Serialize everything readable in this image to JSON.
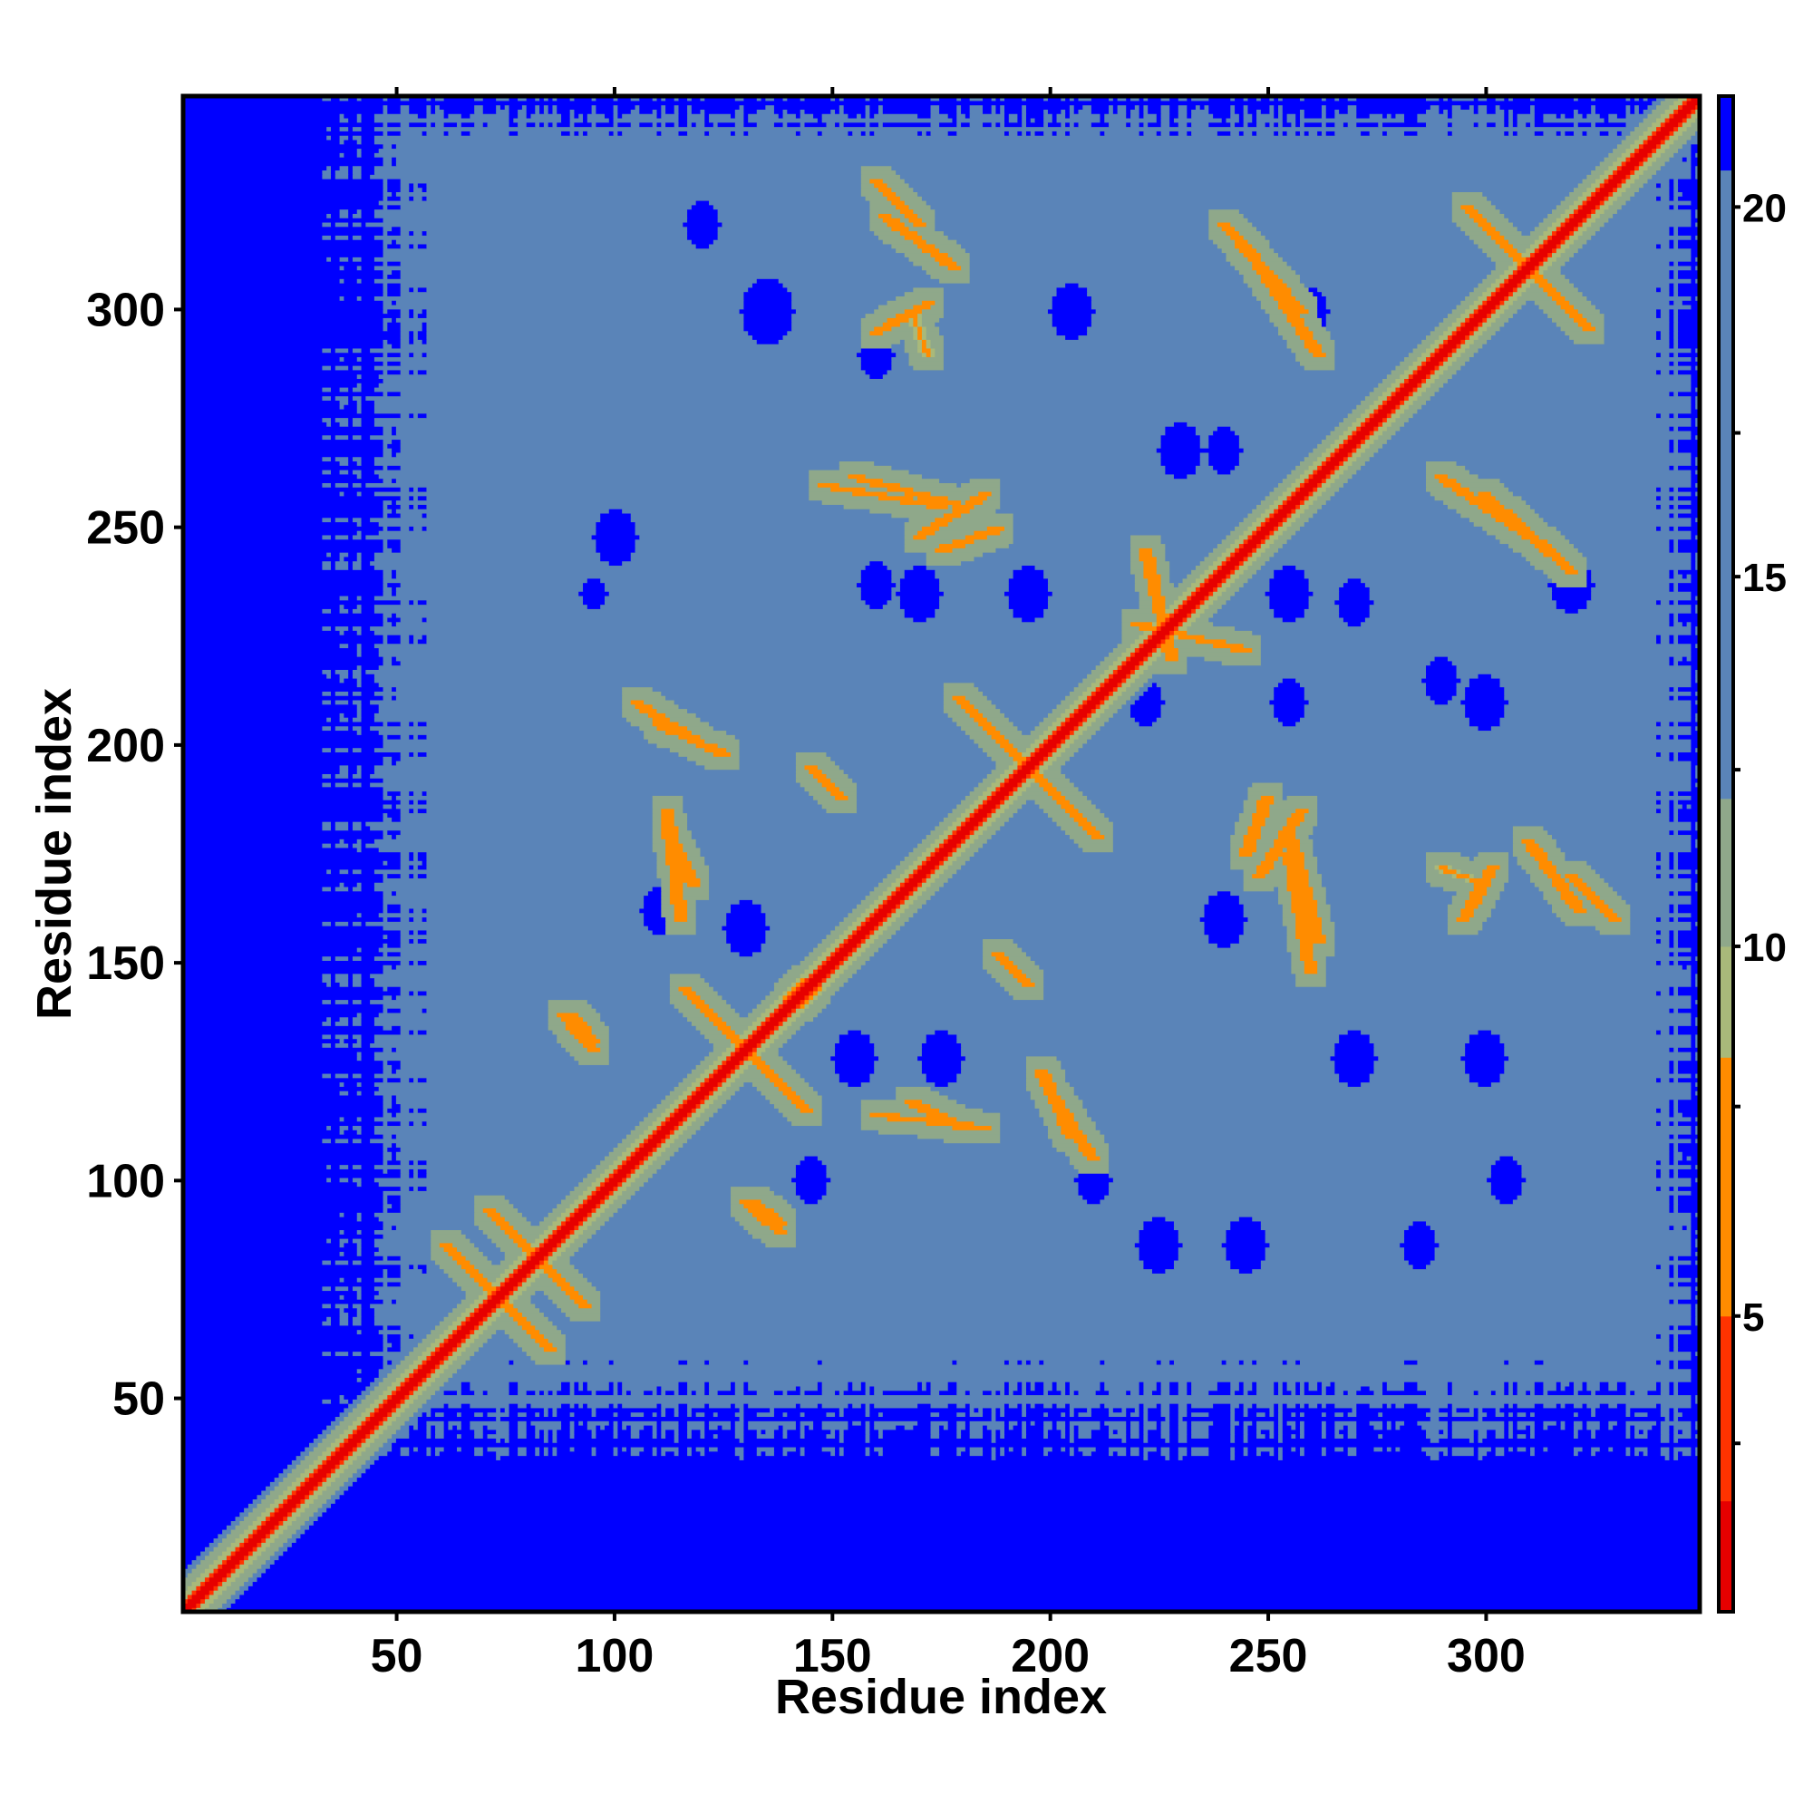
{
  "chart_data": {
    "type": "heatmap",
    "title": "",
    "xlabel": "Residue index",
    "ylabel": "Residue index",
    "xlim": [
      1,
      349
    ],
    "ylim": [
      1,
      349
    ],
    "xticks": [
      50,
      100,
      150,
      200,
      250,
      300
    ],
    "yticks": [
      50,
      100,
      150,
      200,
      250,
      300
    ],
    "xtick_labels": [
      "50",
      "100",
      "150",
      "200",
      "250",
      "300"
    ],
    "ytick_labels": [
      "50",
      "100",
      "150",
      "200",
      "250",
      "300"
    ],
    "grid": false,
    "colorbar": {
      "range": [
        1,
        21.5
      ],
      "ticks": [
        5,
        10,
        15,
        20
      ],
      "tick_labels": [
        "5",
        "10",
        "15",
        "20"
      ],
      "colors": [
        {
          "from": 1,
          "to": 2.5,
          "color": "#e60000"
        },
        {
          "from": 2.5,
          "to": 5,
          "color": "#ff3300"
        },
        {
          "from": 5,
          "to": 8.5,
          "color": "#ff8c00"
        },
        {
          "from": 8.5,
          "to": 10,
          "color": "#a9b97a"
        },
        {
          "from": 10,
          "to": 12,
          "color": "#8fa88a"
        },
        {
          "from": 12,
          "to": 20.5,
          "color": "#5a84b8"
        },
        {
          "from": 20.5,
          "to": 21.5,
          "color": "#0000ff"
        }
      ]
    },
    "background_value": 21,
    "diagonal_value": 1,
    "contact_region_value": 17,
    "plot_region": {
      "x": [
        45,
        345
      ],
      "y": [
        45,
        345
      ]
    },
    "features": [
      {
        "kind": "cross",
        "center": [
          73,
          73
        ],
        "half_length": 12,
        "value": 6
      },
      {
        "kind": "cross",
        "center": [
          82,
          82
        ],
        "half_length": 11,
        "value": 6
      },
      {
        "kind": "cross",
        "center": [
          130,
          130
        ],
        "half_length": 14,
        "value": 6
      },
      {
        "kind": "cross",
        "center": [
          195,
          195
        ],
        "half_length": 16,
        "value": 6
      },
      {
        "kind": "cross",
        "center": [
          310,
          310
        ],
        "half_length": 14,
        "value": 6
      },
      {
        "kind": "band",
        "from": [
          90,
          138
        ],
        "to": [
          95,
          132
        ],
        "value": 6
      },
      {
        "kind": "band",
        "from": [
          130,
          95
        ],
        "to": [
          138,
          88
        ],
        "value": 6
      },
      {
        "kind": "band",
        "from": [
          145,
          195
        ],
        "to": [
          152,
          188
        ],
        "value": 6
      },
      {
        "kind": "band",
        "from": [
          142,
          140
        ],
        "to": [
          148,
          147
        ],
        "value": 6
      },
      {
        "kind": "band",
        "from": [
          160,
          330
        ],
        "to": [
          170,
          320
        ],
        "value": 6
      },
      {
        "kind": "band",
        "from": [
          148,
          260
        ],
        "to": [
          175,
          255
        ],
        "value": 7
      },
      {
        "kind": "band",
        "from": [
          170,
          248
        ],
        "to": [
          185,
          258
        ],
        "value": 7
      },
      {
        "kind": "band",
        "from": [
          160,
          115
        ],
        "to": [
          185,
          112
        ],
        "value": 7
      },
      {
        "kind": "band",
        "from": [
          200,
          120
        ],
        "to": [
          210,
          105
        ],
        "value": 7
      },
      {
        "kind": "band",
        "from": [
          255,
          180
        ],
        "to": [
          262,
          155
        ],
        "value": 7
      },
      {
        "kind": "band",
        "from": [
          245,
          175
        ],
        "to": [
          250,
          188
        ],
        "value": 7
      },
      {
        "kind": "band",
        "from": [
          310,
          178
        ],
        "to": [
          322,
          162
        ],
        "value": 7
      },
      {
        "kind": "band",
        "from": [
          295,
          160
        ],
        "to": [
          302,
          172
        ],
        "value": 7
      },
      {
        "kind": "band",
        "from": [
          290,
          262
        ],
        "to": [
          315,
          245
        ],
        "value": 7
      },
      {
        "kind": "band",
        "from": [
          240,
          320
        ],
        "to": [
          258,
          300
        ],
        "value": 7
      },
      {
        "kind": "band",
        "from": [
          110,
          205
        ],
        "to": [
          125,
          198
        ],
        "value": 7
      },
      {
        "kind": "band",
        "from": [
          112,
          180
        ],
        "to": [
          118,
          168
        ],
        "value": 7
      },
      {
        "kind": "band",
        "from": [
          168,
          300
        ],
        "to": [
          172,
          290
        ],
        "value": 8
      },
      {
        "kind": "band",
        "from": [
          220,
          228
        ],
        "to": [
          245,
          222
        ],
        "value": 7
      }
    ],
    "holes": [
      {
        "center": [
          100,
          248
        ],
        "radius": 5
      },
      {
        "center": [
          120,
          320
        ],
        "radius": 4
      },
      {
        "center": [
          135,
          300
        ],
        "radius": 6
      },
      {
        "center": [
          160,
          290
        ],
        "radius": 4
      },
      {
        "center": [
          205,
          300
        ],
        "radius": 5
      },
      {
        "center": [
          230,
          268
        ],
        "radius": 5
      },
      {
        "center": [
          240,
          268
        ],
        "radius": 4
      },
      {
        "center": [
          260,
          300
        ],
        "radius": 4
      },
      {
        "center": [
          255,
          235
        ],
        "radius": 5
      },
      {
        "center": [
          270,
          233
        ],
        "radius": 4
      },
      {
        "center": [
          320,
          237
        ],
        "radius": 5
      },
      {
        "center": [
          160,
          237
        ],
        "radius": 4
      },
      {
        "center": [
          170,
          235
        ],
        "radius": 5
      },
      {
        "center": [
          195,
          235
        ],
        "radius": 5
      },
      {
        "center": [
          222,
          210
        ],
        "radius": 4
      },
      {
        "center": [
          300,
          210
        ],
        "radius": 5
      },
      {
        "center": [
          110,
          162
        ],
        "radius": 4
      },
      {
        "center": [
          130,
          158
        ],
        "radius": 5
      },
      {
        "center": [
          155,
          128
        ],
        "radius": 5
      },
      {
        "center": [
          175,
          128
        ],
        "radius": 5
      },
      {
        "center": [
          240,
          160
        ],
        "radius": 5
      },
      {
        "center": [
          270,
          128
        ],
        "radius": 5
      },
      {
        "center": [
          300,
          128
        ],
        "radius": 5
      },
      {
        "center": [
          225,
          85
        ],
        "radius": 5
      },
      {
        "center": [
          245,
          85
        ],
        "radius": 5
      },
      {
        "center": [
          285,
          85
        ],
        "radius": 4
      },
      {
        "center": [
          305,
          100
        ],
        "radius": 4
      },
      {
        "center": [
          145,
          100
        ],
        "radius": 4
      },
      {
        "center": [
          210,
          100
        ],
        "radius": 4
      },
      {
        "center": [
          290,
          215
        ],
        "radius": 4
      },
      {
        "center": [
          255,
          210
        ],
        "radius": 4
      },
      {
        "center": [
          95,
          235
        ],
        "radius": 3
      }
    ]
  }
}
